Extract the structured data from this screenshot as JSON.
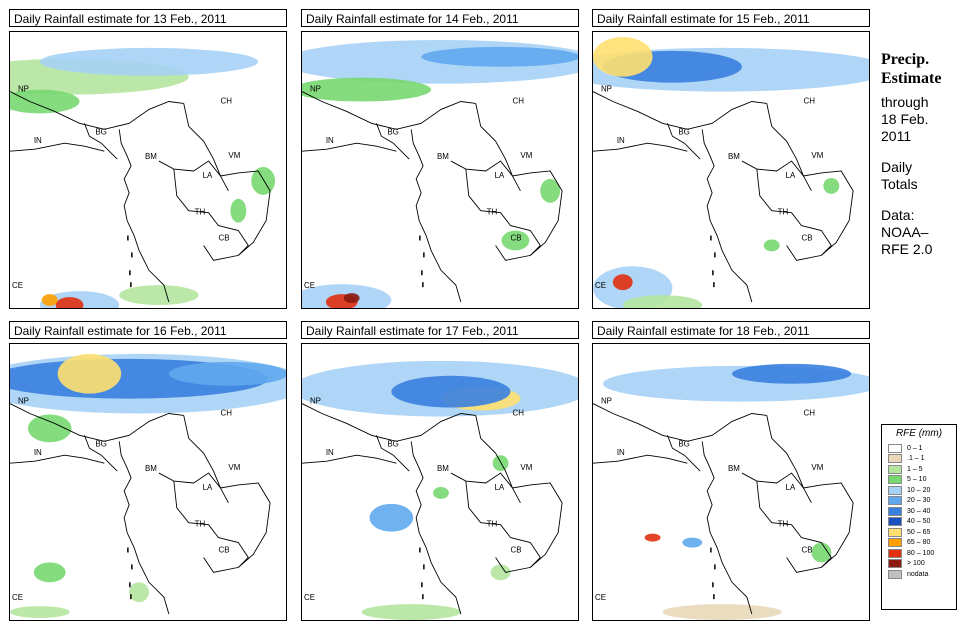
{
  "panels": [
    {
      "title": "Daily Rainfall estimate for  13 Feb., 2011"
    },
    {
      "title": "Daily Rainfall estimate for  14 Feb., 2011"
    },
    {
      "title": "Daily Rainfall estimate for  15 Feb., 2011"
    },
    {
      "title": "Daily Rainfall estimate for  16 Feb., 2011"
    },
    {
      "title": "Daily Rainfall estimate for  17 Feb., 2011"
    },
    {
      "title": "Daily Rainfall estimate for  18 Feb., 2011"
    }
  ],
  "map_labels": {
    "np": "NP",
    "ch": "CH",
    "in": "IN",
    "bg": "BG",
    "bm": "BM",
    "vm": "VM",
    "la": "LA",
    "th": "TH",
    "cb": "CB",
    "ce": "CE"
  },
  "sidebar": {
    "title_line1": "Precip.",
    "title_line2": "Estimate",
    "through": "through",
    "date_line1": "18 Feb.",
    "date_line2": "2011",
    "daily_line1": "Daily",
    "daily_line2": "Totals",
    "data_line1": "Data:",
    "data_line2": "NOAA–",
    "data_line3": "RFE 2.0"
  },
  "legend": {
    "title": "RFE (mm)",
    "items": [
      {
        "label": "0 – 1",
        "color": "#ffffff"
      },
      {
        "label": ".1 – 1",
        "color": "#e8d8b8"
      },
      {
        "label": "1 – 5",
        "color": "#b4e6a0"
      },
      {
        "label": "5 – 10",
        "color": "#78d870"
      },
      {
        "label": "10 – 20",
        "color": "#a6d2f5"
      },
      {
        "label": "20 – 30",
        "color": "#60a8ee"
      },
      {
        "label": "30 – 40",
        "color": "#3880e0"
      },
      {
        "label": "40 – 50",
        "color": "#1850c0"
      },
      {
        "label": "50 – 65",
        "color": "#ffe070"
      },
      {
        "label": "65 – 80",
        "color": "#ffa000"
      },
      {
        "label": "80 – 100",
        "color": "#e03010"
      },
      {
        "label": "> 100",
        "color": "#8b1a10"
      },
      {
        "label": "nodata",
        "color": "#c0c0c0"
      }
    ]
  }
}
